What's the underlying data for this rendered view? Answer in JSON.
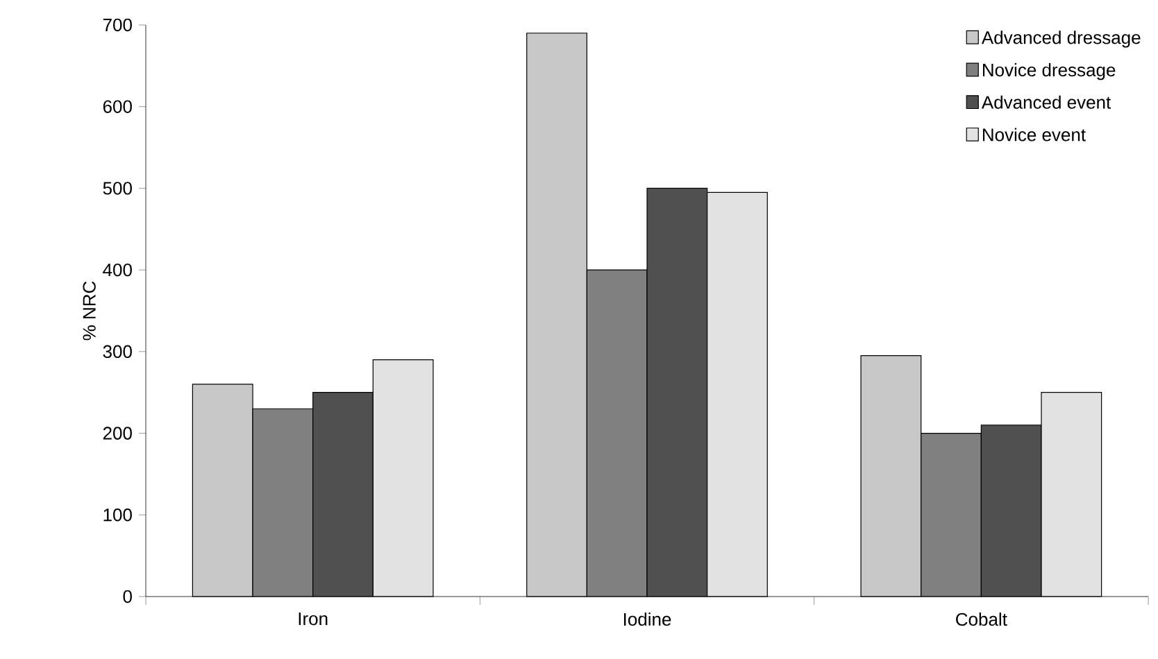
{
  "chart_data": {
    "type": "bar",
    "ylabel": "% NRC",
    "categories": [
      "Iron",
      "Iodine",
      "Cobalt"
    ],
    "series": [
      {
        "name": "Advanced dressage",
        "color": "#c8c8c8",
        "values": [
          260,
          690,
          295
        ]
      },
      {
        "name": "Novice dressage",
        "color": "#808080",
        "values": [
          230,
          400,
          200
        ]
      },
      {
        "name": "Advanced event",
        "color": "#505050",
        "values": [
          250,
          500,
          210
        ]
      },
      {
        "name": "Novice event",
        "color": "#e2e2e2",
        "values": [
          290,
          495,
          250
        ]
      }
    ],
    "ylim": [
      0,
      700
    ],
    "yticks": [
      0,
      100,
      200,
      300,
      400,
      500,
      600,
      700
    ],
    "grid": false,
    "legend": "top right"
  }
}
